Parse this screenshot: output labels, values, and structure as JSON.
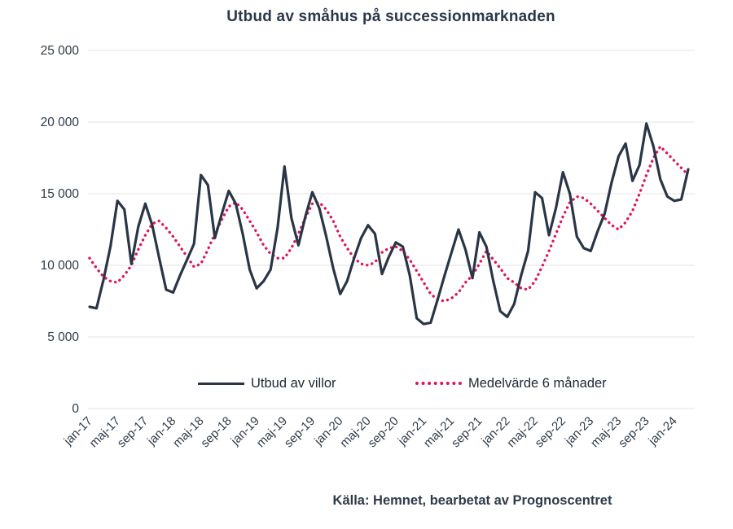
{
  "chart_data": {
    "type": "line",
    "title": "Utbud av småhus på successionmarknaden",
    "xlabel": "",
    "ylabel": "",
    "ylim": [
      0,
      25000
    ],
    "y_ticks": [
      0,
      5000,
      10000,
      15000,
      20000,
      25000
    ],
    "y_tick_labels": [
      "0",
      "5 000",
      "10 000",
      "15 000",
      "20 000",
      "25 000"
    ],
    "grid": "horizontal",
    "legend_position": "bottom-inside",
    "x_tick_every": 4,
    "months": [
      "jan-17",
      "feb-17",
      "mar-17",
      "apr-17",
      "maj-17",
      "jun-17",
      "jul-17",
      "aug-17",
      "sep-17",
      "okt-17",
      "nov-17",
      "dec-17",
      "jan-18",
      "feb-18",
      "mar-18",
      "apr-18",
      "maj-18",
      "jun-18",
      "jul-18",
      "aug-18",
      "sep-18",
      "okt-18",
      "nov-18",
      "dec-18",
      "jan-19",
      "feb-19",
      "mar-19",
      "apr-19",
      "maj-19",
      "jun-19",
      "jul-19",
      "aug-19",
      "sep-19",
      "okt-19",
      "nov-19",
      "dec-19",
      "jan-20",
      "feb-20",
      "mar-20",
      "apr-20",
      "maj-20",
      "jun-20",
      "jul-20",
      "aug-20",
      "sep-20",
      "okt-20",
      "nov-20",
      "dec-20",
      "jan-21",
      "feb-21",
      "mar-21",
      "apr-21",
      "maj-21",
      "jun-21",
      "jul-21",
      "aug-21",
      "sep-21",
      "okt-21",
      "nov-21",
      "dec-21",
      "jan-22",
      "feb-22",
      "mar-22",
      "apr-22",
      "maj-22",
      "jun-22",
      "jul-22",
      "aug-22",
      "sep-22",
      "okt-22",
      "nov-22",
      "dec-22",
      "jan-23",
      "feb-23",
      "mar-23",
      "apr-23",
      "maj-23",
      "jun-23",
      "jul-23",
      "aug-23",
      "sep-23",
      "okt-23",
      "nov-23",
      "dec-23",
      "jan-24",
      "feb-24",
      "mar-24"
    ],
    "series": [
      {
        "name": "Utbud av villor",
        "style": "solid",
        "color": "#2a3547",
        "values": [
          7100,
          7000,
          9000,
          11300,
          14500,
          13900,
          10100,
          12700,
          14300,
          12800,
          10500,
          8300,
          8100,
          9300,
          10400,
          11500,
          16300,
          15600,
          11900,
          13600,
          15200,
          14300,
          12200,
          9700,
          8400,
          8900,
          9700,
          12600,
          16900,
          13300,
          11400,
          13400,
          15100,
          14000,
          12000,
          9800,
          8000,
          8900,
          10500,
          11900,
          12800,
          12200,
          9400,
          10600,
          11600,
          11300,
          9300,
          6300,
          5900,
          6000,
          7600,
          9300,
          10900,
          12500,
          11100,
          9100,
          12300,
          11300,
          8900,
          6800,
          6400,
          7300,
          9300,
          11000,
          15100,
          14700,
          12100,
          14000,
          16500,
          15000,
          12000,
          11200,
          11000,
          12400,
          13600,
          15800,
          17600,
          18500,
          15900,
          17000,
          19900,
          18300,
          16000,
          14800,
          14500,
          14600,
          16700
        ]
      },
      {
        "name": "Medelvärde 6 månader",
        "style": "dotted",
        "color": "#e0145c",
        "values": [
          10500,
          9800,
          9200,
          8900,
          8800,
          9300,
          10000,
          11100,
          12100,
          12900,
          13100,
          12600,
          12000,
          11300,
          10600,
          9900,
          10100,
          11100,
          12200,
          13200,
          14100,
          14400,
          13900,
          13100,
          12300,
          11400,
          10800,
          10500,
          10500,
          11200,
          12200,
          13300,
          14300,
          14400,
          13900,
          13100,
          12000,
          11200,
          10500,
          10100,
          10000,
          10200,
          10900,
          11200,
          11300,
          11000,
          10400,
          9600,
          8800,
          8000,
          7600,
          7500,
          7700,
          8100,
          8800,
          9300,
          10100,
          11000,
          10400,
          9800,
          9100,
          8800,
          8400,
          8300,
          8900,
          9900,
          11000,
          12200,
          13400,
          14400,
          14800,
          14700,
          14300,
          13800,
          13300,
          12800,
          12500,
          13000,
          13800,
          15000,
          16300,
          17500,
          18300,
          17800,
          17300,
          16800,
          16300
        ]
      }
    ]
  },
  "source": {
    "text": "Källa: Hemnet, bearbetat av Prognoscentret"
  },
  "colors": {
    "title": "#2b3849",
    "axis_labels": "#2e3b49",
    "gridline": "#e3e3e3",
    "series_main": "#2a3547",
    "series_average": "#e0145c"
  }
}
